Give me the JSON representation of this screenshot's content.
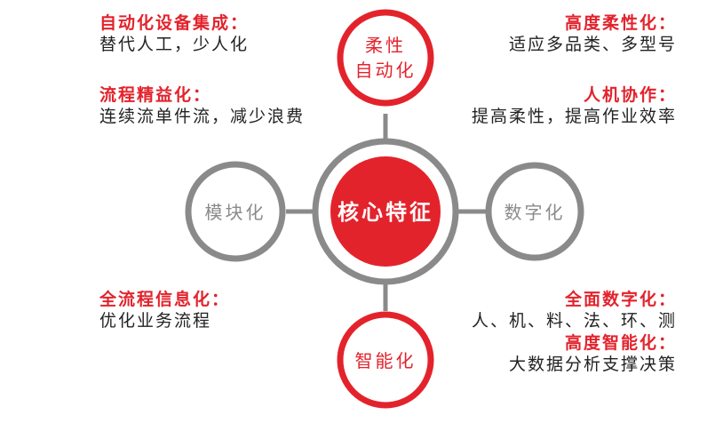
{
  "colors": {
    "accent": "#e3232c",
    "ring_gray": "#8a8a8a",
    "gray_text": "#8a8a8a",
    "body_text": "#222222",
    "white": "#ffffff"
  },
  "center": {
    "label": "核心特征"
  },
  "nodes": {
    "top": {
      "line1": "柔性",
      "line2": "自动化"
    },
    "left": {
      "label": "模块化"
    },
    "right": {
      "label": "数字化"
    },
    "bottom": {
      "label": "智能化"
    }
  },
  "notes": {
    "top_left": [
      {
        "head": "自动化设备集成：",
        "body": "替代人工，少人化"
      },
      {
        "head": "流程精益化：",
        "body": "连续流单件流，减少浪费"
      }
    ],
    "top_right": [
      {
        "head": "高度柔性化：",
        "body": "适应多品类、多型号"
      },
      {
        "head": "人机协作：",
        "body": "提高柔性，提高作业效率"
      }
    ],
    "bottom_left": [
      {
        "head": "全流程信息化：",
        "body": "优化业务流程"
      }
    ],
    "bottom_right": [
      {
        "head": "全面数字化：",
        "body": "人、机、料、法、环、测"
      },
      {
        "head": "高度智能化：",
        "body": "大数据分析支撑决策"
      }
    ]
  }
}
